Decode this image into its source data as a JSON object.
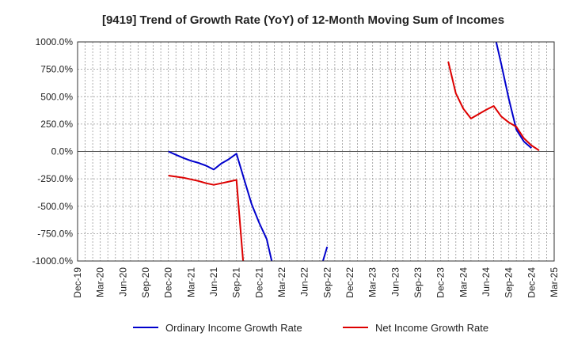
{
  "chart_data": {
    "type": "line",
    "title": "[9419]  Trend of Growth Rate (YoY) of 12-Month Moving Sum of Incomes",
    "xlabel": "",
    "ylabel": "",
    "ylim": [
      -1000,
      1000
    ],
    "grid": true,
    "legend_position": "bottom",
    "x_tick_labels": [
      "Dec-19",
      "Mar-20",
      "Jun-20",
      "Sep-20",
      "Dec-20",
      "Mar-21",
      "Jun-21",
      "Sep-21",
      "Dec-21",
      "Mar-22",
      "Jun-22",
      "Sep-22",
      "Dec-22",
      "Mar-23",
      "Jun-23",
      "Sep-23",
      "Dec-23",
      "Mar-24",
      "Jun-24",
      "Sep-24",
      "Dec-24",
      "Mar-25"
    ],
    "y_ticks": [
      1000,
      750,
      500,
      250,
      0,
      -250,
      -500,
      -750,
      -1000
    ],
    "y_tick_labels": [
      "1000.0%",
      "750.0%",
      "500.0%",
      "250.0%",
      "0.0%",
      "-250.0%",
      "-500.0%",
      "-750.0%",
      "-1000.0%"
    ],
    "x_start": "2019-12",
    "series": [
      {
        "name": "Ordinary Income Growth Rate",
        "color": "#0000cc",
        "points": [
          [
            "2020-12",
            0
          ],
          [
            "2021-01",
            -30
          ],
          [
            "2021-02",
            -60
          ],
          [
            "2021-03",
            -85
          ],
          [
            "2021-04",
            -105
          ],
          [
            "2021-05",
            -130
          ],
          [
            "2021-06",
            -165
          ],
          [
            "2021-07",
            -110
          ],
          [
            "2021-08",
            -70
          ],
          [
            "2021-09",
            -20
          ],
          [
            "2021-10",
            -250
          ],
          [
            "2021-11",
            -480
          ],
          [
            "2021-12",
            -650
          ],
          [
            "2022-01",
            -800
          ],
          [
            "2022-02",
            -1100
          ],
          null,
          [
            "2022-08",
            -1100
          ],
          [
            "2022-09",
            -870
          ],
          null,
          [
            "2024-07",
            1100
          ],
          [
            "2024-08",
            800
          ],
          [
            "2024-09",
            480
          ],
          [
            "2024-10",
            200
          ],
          [
            "2024-11",
            90
          ],
          [
            "2024-12",
            30
          ]
        ]
      },
      {
        "name": "Net Income Growth Rate",
        "color": "#dd0000",
        "points": [
          [
            "2020-12",
            -220
          ],
          [
            "2021-01",
            -230
          ],
          [
            "2021-02",
            -240
          ],
          [
            "2021-03",
            -255
          ],
          [
            "2021-04",
            -270
          ],
          [
            "2021-05",
            -290
          ],
          [
            "2021-06",
            -305
          ],
          [
            "2021-07",
            -290
          ],
          [
            "2021-08",
            -275
          ],
          [
            "2021-09",
            -260
          ],
          [
            "2021-10",
            -1100
          ],
          null,
          [
            "2024-01",
            820
          ],
          [
            "2024-02",
            530
          ],
          [
            "2024-03",
            390
          ],
          [
            "2024-04",
            300
          ],
          [
            "2024-05",
            340
          ],
          [
            "2024-06",
            380
          ],
          [
            "2024-07",
            415
          ],
          [
            "2024-08",
            320
          ],
          [
            "2024-09",
            265
          ],
          [
            "2024-10",
            225
          ],
          [
            "2024-11",
            120
          ],
          [
            "2024-12",
            55
          ],
          [
            "2025-01",
            10
          ]
        ]
      }
    ]
  }
}
